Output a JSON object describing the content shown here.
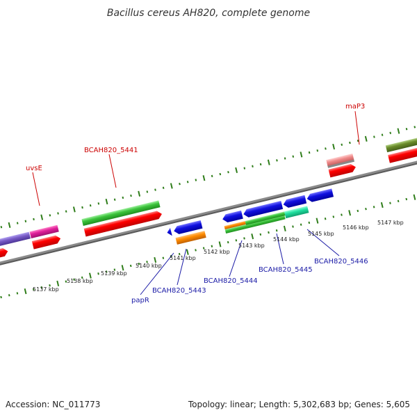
{
  "title": "Bacillus cereus AH820, complete genome",
  "footer": {
    "accession": "Accession: NC_011773",
    "summary": "Topology: linear; Length: 5,302,683 bp; Genes: 5,605"
  },
  "scale_labels": [
    "5137 kbp",
    "5138 kbp",
    "5139 kbp",
    "5140 kbp",
    "5141 kbp",
    "5142 kbp",
    "5143 kbp",
    "5144 kbp",
    "5145 kbp",
    "5146 kbp",
    "5147 kbp"
  ],
  "gene_labels": {
    "uvsE": "uvsE",
    "bcah820_5441": "BCAH820_5441",
    "map3": "maP3",
    "papR": "papR",
    "bcah820_5443": "BCAH820_5443",
    "bcah820_5444": "BCAH820_5444",
    "bcah820_5445": "BCAH820_5445",
    "bcah820_5446": "BCAH820_5446"
  },
  "colors": {
    "backbone": "#8a8a8a",
    "tick_green": "#2f7d1a",
    "cds_red": "#ff0000",
    "cds_blue": "#1010e0",
    "gene_green": "#3cc43c",
    "gene_magenta": "#e0209a",
    "gene_purple": "#7a5cc8",
    "gene_orange": "#ff8c00",
    "gene_cyan": "#20e0a0",
    "gene_pink": "#f08a8a",
    "gene_olive": "#6a8c2a",
    "label_red": "#cc0000",
    "label_blue": "#1a1aa6"
  }
}
